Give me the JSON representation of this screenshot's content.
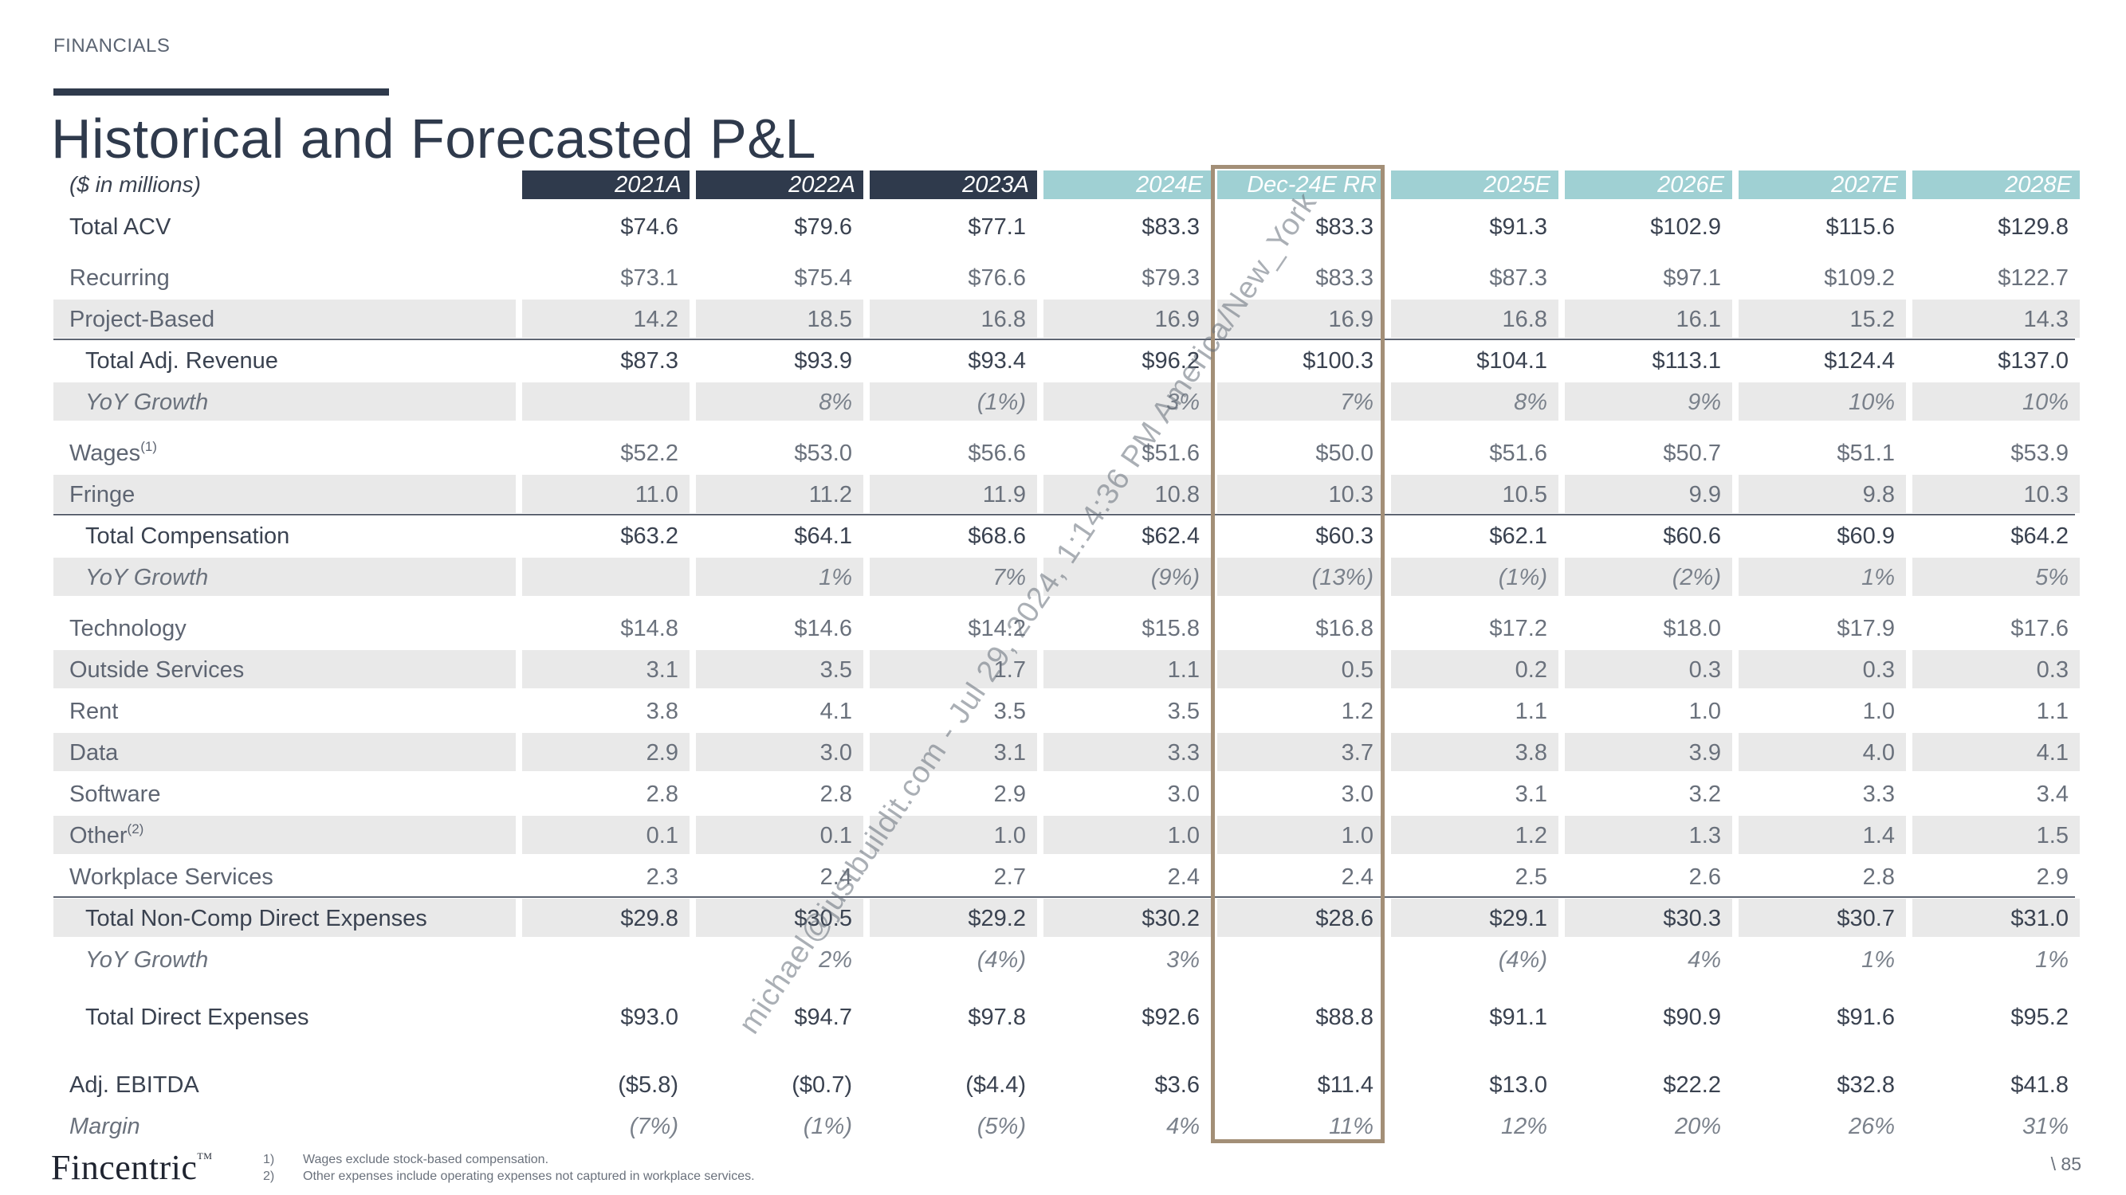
{
  "header": {
    "section": "FINANCIALS",
    "title": "Historical and Forecasted P&L",
    "units": "($ in millions)"
  },
  "columns": [
    "2021A",
    "2022A",
    "2023A",
    "2024E",
    "Dec-24E RR",
    "2025E",
    "2026E",
    "2027E",
    "2028E"
  ],
  "rows": [
    {
      "label": "Total ACV",
      "values": [
        "$74.6",
        "$79.6",
        "$77.1",
        "$83.3",
        "$83.3",
        "$91.3",
        "$102.9",
        "$115.6",
        "$129.8"
      ]
    },
    {
      "label": "Recurring",
      "values": [
        "$73.1",
        "$75.4",
        "$76.6",
        "$79.3",
        "$83.3",
        "$87.3",
        "$97.1",
        "$109.2",
        "$122.7"
      ]
    },
    {
      "label": "Project-Based",
      "values": [
        "14.2",
        "18.5",
        "16.8",
        "16.9",
        "16.9",
        "16.8",
        "16.1",
        "15.2",
        "14.3"
      ]
    },
    {
      "label": "Total Adj. Revenue",
      "values": [
        "$87.3",
        "$93.9",
        "$93.4",
        "$96.2",
        "$100.3",
        "$104.1",
        "$113.1",
        "$124.4",
        "$137.0"
      ]
    },
    {
      "label": "YoY Growth",
      "values": [
        "",
        "8%",
        "(1%)",
        "3%",
        "7%",
        "8%",
        "9%",
        "10%",
        "10%"
      ]
    },
    {
      "label": "Wages",
      "sup": "(1)",
      "values": [
        "$52.2",
        "$53.0",
        "$56.6",
        "$51.6",
        "$50.0",
        "$51.6",
        "$50.7",
        "$51.1",
        "$53.9"
      ]
    },
    {
      "label": "Fringe",
      "values": [
        "11.0",
        "11.2",
        "11.9",
        "10.8",
        "10.3",
        "10.5",
        "9.9",
        "9.8",
        "10.3"
      ]
    },
    {
      "label": "Total Compensation",
      "values": [
        "$63.2",
        "$64.1",
        "$68.6",
        "$62.4",
        "$60.3",
        "$62.1",
        "$60.6",
        "$60.9",
        "$64.2"
      ]
    },
    {
      "label": "YoY Growth",
      "values": [
        "",
        "1%",
        "7%",
        "(9%)",
        "(13%)",
        "(1%)",
        "(2%)",
        "1%",
        "5%"
      ]
    },
    {
      "label": "Technology",
      "values": [
        "$14.8",
        "$14.6",
        "$14.2",
        "$15.8",
        "$16.8",
        "$17.2",
        "$18.0",
        "$17.9",
        "$17.6"
      ]
    },
    {
      "label": "Outside Services",
      "values": [
        "3.1",
        "3.5",
        "1.7",
        "1.1",
        "0.5",
        "0.2",
        "0.3",
        "0.3",
        "0.3"
      ]
    },
    {
      "label": "Rent",
      "values": [
        "3.8",
        "4.1",
        "3.5",
        "3.5",
        "1.2",
        "1.1",
        "1.0",
        "1.0",
        "1.1"
      ]
    },
    {
      "label": "Data",
      "values": [
        "2.9",
        "3.0",
        "3.1",
        "3.3",
        "3.7",
        "3.8",
        "3.9",
        "4.0",
        "4.1"
      ]
    },
    {
      "label": "Software",
      "values": [
        "2.8",
        "2.8",
        "2.9",
        "3.0",
        "3.0",
        "3.1",
        "3.2",
        "3.3",
        "3.4"
      ]
    },
    {
      "label": "Other",
      "sup": "(2)",
      "values": [
        "0.1",
        "0.1",
        "1.0",
        "1.0",
        "1.0",
        "1.2",
        "1.3",
        "1.4",
        "1.5"
      ]
    },
    {
      "label": "Workplace Services",
      "values": [
        "2.3",
        "2.4",
        "2.7",
        "2.4",
        "2.4",
        "2.5",
        "2.6",
        "2.8",
        "2.9"
      ]
    },
    {
      "label": "Total Non-Comp Direct Expenses",
      "values": [
        "$29.8",
        "$30.5",
        "$29.2",
        "$30.2",
        "$28.6",
        "$29.1",
        "$30.3",
        "$30.7",
        "$31.0"
      ]
    },
    {
      "label": "YoY Growth",
      "values": [
        "",
        "2%",
        "(4%)",
        "3%",
        "",
        "(4%)",
        "4%",
        "1%",
        "1%"
      ]
    },
    {
      "label": "Total Direct Expenses",
      "values": [
        "$93.0",
        "$94.7",
        "$97.8",
        "$92.6",
        "$88.8",
        "$91.1",
        "$90.9",
        "$91.6",
        "$95.2"
      ]
    },
    {
      "label": "Adj. EBITDA",
      "values": [
        "($5.8)",
        "($0.7)",
        "($4.4)",
        "$3.6",
        "$11.4",
        "$13.0",
        "$22.2",
        "$32.8",
        "$41.8"
      ]
    },
    {
      "label": "Margin",
      "values": [
        "(7%)",
        "(1%)",
        "(5%)",
        "4%",
        "11%",
        "12%",
        "20%",
        "26%",
        "31%"
      ]
    }
  ],
  "watermark": "michael@justbuildit.com - Jul 29, 2024, 1:14:36 PM America/New_York",
  "footer": {
    "logo": "Fincentric",
    "logo_tm": "TM",
    "footnotes": [
      {
        "num": "1)",
        "text": "Wages exclude stock-based compensation."
      },
      {
        "num": "2)",
        "text": "Other expenses include operating expenses not captured in workplace services."
      }
    ],
    "page": "\\ 85"
  },
  "colors": {
    "actual_header": "#2f3a4c",
    "estimate_header": "#9fd0d3",
    "highlight_box": "#a38f77",
    "band": "#e9e9e9"
  }
}
